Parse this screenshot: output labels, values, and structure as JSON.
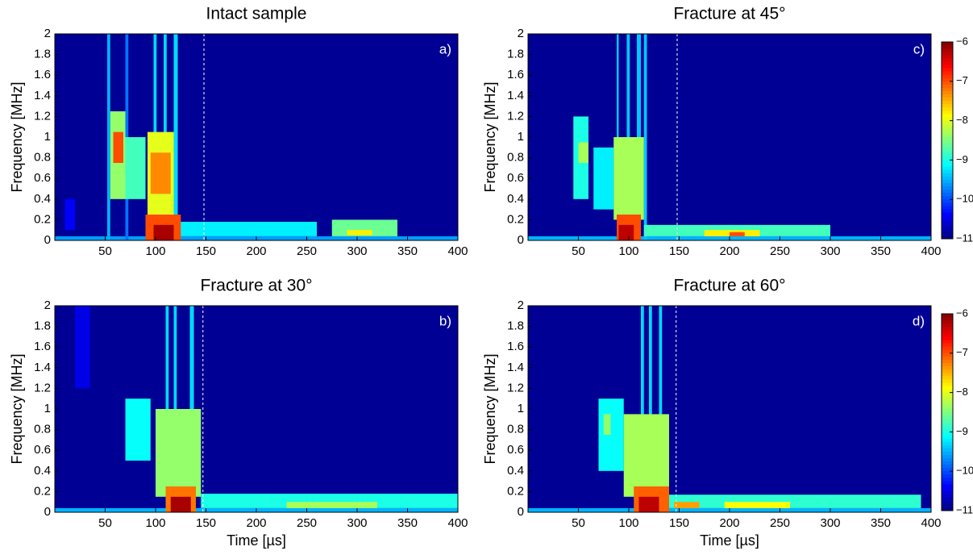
{
  "chart_data": [
    {
      "type": "heatmap",
      "title": "Intact sample",
      "label": "a)",
      "ylabel": "Frequency [MHz]",
      "xlim": [
        0,
        400
      ],
      "ylim": [
        0,
        2
      ],
      "xticks": [
        50,
        100,
        150,
        200,
        250,
        300,
        350,
        400
      ],
      "yticks": [
        0,
        0.2,
        0.4,
        0.6,
        0.8,
        1,
        1.2,
        1.4,
        1.6,
        1.8,
        2
      ],
      "clim": [
        -11,
        -6
      ],
      "vline": 148,
      "cells": [
        {
          "x": [
            0,
            400
          ],
          "y": [
            0,
            2
          ],
          "value": -10.9
        },
        {
          "x": [
            10,
            20
          ],
          "y": [
            0.1,
            0.4
          ],
          "value": -10.4
        },
        {
          "x": [
            0,
            400
          ],
          "y": [
            0,
            0.04
          ],
          "value": -9.6
        },
        {
          "x": [
            52,
            55
          ],
          "y": [
            0,
            2
          ],
          "value": -9.5
        },
        {
          "x": [
            70,
            73
          ],
          "y": [
            0,
            2
          ],
          "value": -9.8
        },
        {
          "x": [
            98,
            101
          ],
          "y": [
            0,
            2
          ],
          "value": -9.3
        },
        {
          "x": [
            108,
            111
          ],
          "y": [
            0,
            2
          ],
          "value": -9.3
        },
        {
          "x": [
            118,
            122
          ],
          "y": [
            0,
            2
          ],
          "value": -9.3
        },
        {
          "x": [
            55,
            70
          ],
          "y": [
            0.4,
            1.25
          ],
          "value": -8.4
        },
        {
          "x": [
            58,
            68
          ],
          "y": [
            0.75,
            1.05
          ],
          "value": -7.0
        },
        {
          "x": [
            70,
            90
          ],
          "y": [
            0.4,
            1.0
          ],
          "value": -8.8
        },
        {
          "x": [
            92,
            118
          ],
          "y": [
            0.2,
            1.05
          ],
          "value": -8.0
        },
        {
          "x": [
            95,
            115
          ],
          "y": [
            0.45,
            0.85
          ],
          "value": -7.3
        },
        {
          "x": [
            120,
            260
          ],
          "y": [
            0.04,
            0.18
          ],
          "value": -9.2
        },
        {
          "x": [
            275,
            340
          ],
          "y": [
            0.04,
            0.2
          ],
          "value": -8.6
        },
        {
          "x": [
            290,
            315
          ],
          "y": [
            0.05,
            0.1
          ],
          "value": -7.8
        },
        {
          "x": [
            90,
            125
          ],
          "y": [
            0,
            0.25
          ],
          "value": -7.0
        },
        {
          "x": [
            98,
            118
          ],
          "y": [
            0,
            0.15
          ],
          "value": -6.2
        }
      ]
    },
    {
      "type": "heatmap",
      "title": "Fracture at 30°",
      "label": "b)",
      "ylabel": "Frequency [MHz]",
      "xlabel": "Time [µs]",
      "xlim": [
        0,
        400
      ],
      "ylim": [
        0,
        2
      ],
      "xticks": [
        50,
        100,
        150,
        200,
        250,
        300,
        350,
        400
      ],
      "yticks": [
        0,
        0.2,
        0.4,
        0.6,
        0.8,
        1,
        1.2,
        1.4,
        1.6,
        1.8,
        2
      ],
      "clim": [
        -11,
        -6
      ],
      "vline": 147,
      "cells": [
        {
          "x": [
            0,
            400
          ],
          "y": [
            0,
            2
          ],
          "value": -10.9
        },
        {
          "x": [
            20,
            35
          ],
          "y": [
            1.2,
            2
          ],
          "value": -10.5
        },
        {
          "x": [
            0,
            400
          ],
          "y": [
            0,
            0.04
          ],
          "value": -9.5
        },
        {
          "x": [
            70,
            95
          ],
          "y": [
            0.5,
            1.1
          ],
          "value": -9.1
        },
        {
          "x": [
            110,
            113
          ],
          "y": [
            0,
            2
          ],
          "value": -9.3
        },
        {
          "x": [
            118,
            121
          ],
          "y": [
            0,
            2
          ],
          "value": -9.3
        },
        {
          "x": [
            134,
            138
          ],
          "y": [
            0,
            2
          ],
          "value": -9.3
        },
        {
          "x": [
            100,
            145
          ],
          "y": [
            0.15,
            1.0
          ],
          "value": -8.4
        },
        {
          "x": [
            145,
            400
          ],
          "y": [
            0.04,
            0.18
          ],
          "value": -9.0
        },
        {
          "x": [
            230,
            320
          ],
          "y": [
            0.04,
            0.1
          ],
          "value": -8.3
        },
        {
          "x": [
            110,
            140
          ],
          "y": [
            0,
            0.25
          ],
          "value": -7.2
        },
        {
          "x": [
            115,
            135
          ],
          "y": [
            0,
            0.15
          ],
          "value": -6.2
        }
      ]
    },
    {
      "type": "heatmap",
      "title": "Fracture at 45°",
      "label": "c)",
      "ylabel": "Frequency [MHz]",
      "xlim": [
        0,
        400
      ],
      "ylim": [
        0,
        2
      ],
      "xticks": [
        50,
        100,
        150,
        200,
        250,
        300,
        350,
        400
      ],
      "yticks": [
        0,
        0.2,
        0.4,
        0.6,
        0.8,
        1,
        1.2,
        1.4,
        1.6,
        1.8,
        2
      ],
      "clim": [
        -11,
        -6
      ],
      "vline": 148,
      "colorbar_ticks": [
        {
          "value": -6,
          "label": "−6"
        },
        {
          "value": -7,
          "label": "−7"
        },
        {
          "value": -8,
          "label": "−8"
        },
        {
          "value": -9,
          "label": "−9"
        },
        {
          "value": -10,
          "label": "−10"
        },
        {
          "value": -11,
          "label": "−11"
        }
      ],
      "cells": [
        {
          "x": [
            0,
            400
          ],
          "y": [
            0,
            2
          ],
          "value": -10.9
        },
        {
          "x": [
            0,
            400
          ],
          "y": [
            0,
            0.04
          ],
          "value": -9.5
        },
        {
          "x": [
            45,
            60
          ],
          "y": [
            0.4,
            1.2
          ],
          "value": -9.0
        },
        {
          "x": [
            50,
            60
          ],
          "y": [
            0.75,
            0.95
          ],
          "value": -8.3
        },
        {
          "x": [
            65,
            85
          ],
          "y": [
            0.3,
            0.9
          ],
          "value": -9.2
        },
        {
          "x": [
            88,
            90
          ],
          "y": [
            0,
            2
          ],
          "value": -9.4
        },
        {
          "x": [
            98,
            101
          ],
          "y": [
            0,
            2
          ],
          "value": -9.4
        },
        {
          "x": [
            108,
            112
          ],
          "y": [
            0,
            2
          ],
          "value": -9.4
        },
        {
          "x": [
            115,
            118
          ],
          "y": [
            0,
            2
          ],
          "value": -9.4
        },
        {
          "x": [
            85,
            115
          ],
          "y": [
            0.2,
            1.0
          ],
          "value": -8.3
        },
        {
          "x": [
            115,
            300
          ],
          "y": [
            0.04,
            0.15
          ],
          "value": -8.8
        },
        {
          "x": [
            175,
            230
          ],
          "y": [
            0.04,
            0.1
          ],
          "value": -7.8
        },
        {
          "x": [
            200,
            215
          ],
          "y": [
            0.04,
            0.08
          ],
          "value": -7.0
        },
        {
          "x": [
            88,
            112
          ],
          "y": [
            0,
            0.25
          ],
          "value": -7.0
        },
        {
          "x": [
            90,
            105
          ],
          "y": [
            0,
            0.15
          ],
          "value": -6.3
        }
      ]
    },
    {
      "type": "heatmap",
      "title": "Fracture at 60°",
      "label": "d)",
      "ylabel": "Frequency [MHz]",
      "xlabel": "Time [µs]",
      "xlim": [
        0,
        400
      ],
      "ylim": [
        0,
        2
      ],
      "xticks": [
        50,
        100,
        150,
        200,
        250,
        300,
        350,
        400
      ],
      "yticks": [
        0,
        0.2,
        0.4,
        0.6,
        0.8,
        1,
        1.2,
        1.4,
        1.6,
        1.8,
        2
      ],
      "clim": [
        -11,
        -6
      ],
      "vline": 147,
      "colorbar_ticks": [
        {
          "value": -6,
          "label": "−6"
        },
        {
          "value": -7,
          "label": "−7"
        },
        {
          "value": -8,
          "label": "−8"
        },
        {
          "value": -9,
          "label": "−9"
        },
        {
          "value": -10,
          "label": "−10"
        },
        {
          "value": -11,
          "label": "−11"
        }
      ],
      "cells": [
        {
          "x": [
            0,
            400
          ],
          "y": [
            0,
            2
          ],
          "value": -10.9
        },
        {
          "x": [
            0,
            400
          ],
          "y": [
            0,
            0.04
          ],
          "value": -9.5
        },
        {
          "x": [
            70,
            95
          ],
          "y": [
            0.4,
            1.1
          ],
          "value": -9.1
        },
        {
          "x": [
            75,
            82
          ],
          "y": [
            0.75,
            0.95
          ],
          "value": -8.4
        },
        {
          "x": [
            112,
            115
          ],
          "y": [
            0,
            2
          ],
          "value": -9.3
        },
        {
          "x": [
            120,
            123
          ],
          "y": [
            0,
            2
          ],
          "value": -9.3
        },
        {
          "x": [
            130,
            133
          ],
          "y": [
            0,
            2
          ],
          "value": -9.3
        },
        {
          "x": [
            95,
            140
          ],
          "y": [
            0.15,
            0.95
          ],
          "value": -8.3
        },
        {
          "x": [
            140,
            390
          ],
          "y": [
            0.04,
            0.17
          ],
          "value": -8.9
        },
        {
          "x": [
            145,
            170
          ],
          "y": [
            0.04,
            0.1
          ],
          "value": -7.4
        },
        {
          "x": [
            195,
            260
          ],
          "y": [
            0.04,
            0.1
          ],
          "value": -7.9
        },
        {
          "x": [
            105,
            140
          ],
          "y": [
            0,
            0.25
          ],
          "value": -7.1
        },
        {
          "x": [
            110,
            130
          ],
          "y": [
            0,
            0.15
          ],
          "value": -6.3
        }
      ]
    }
  ]
}
